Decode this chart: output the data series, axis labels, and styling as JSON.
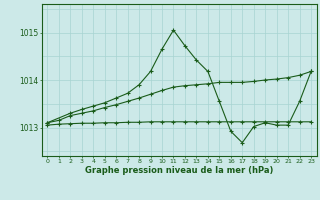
{
  "xlabel": "Graphe pression niveau de la mer (hPa)",
  "bg_color": "#cce9e8",
  "line_color": "#1a5c1a",
  "grid_color": "#a8d4d2",
  "x_ticks": [
    0,
    1,
    2,
    3,
    4,
    5,
    6,
    7,
    8,
    9,
    10,
    11,
    12,
    13,
    14,
    15,
    16,
    17,
    18,
    19,
    20,
    21,
    22,
    23
  ],
  "ylim": [
    1012.4,
    1015.6
  ],
  "yticks": [
    1013,
    1014
  ],
  "ytick_top": 1015,
  "series1_flat": {
    "x": [
      0,
      1,
      2,
      3,
      4,
      5,
      6,
      7,
      8,
      9,
      10,
      11,
      12,
      13,
      14,
      15,
      16,
      17,
      18,
      19,
      20,
      21,
      22,
      23
    ],
    "y": [
      1013.05,
      1013.07,
      1013.08,
      1013.09,
      1013.09,
      1013.1,
      1013.1,
      1013.11,
      1013.11,
      1013.12,
      1013.12,
      1013.12,
      1013.12,
      1013.12,
      1013.12,
      1013.12,
      1013.12,
      1013.12,
      1013.12,
      1013.12,
      1013.12,
      1013.12,
      1013.12,
      1013.12
    ]
  },
  "series2_rising": {
    "x": [
      0,
      1,
      2,
      3,
      4,
      5,
      6,
      7,
      8,
      9,
      10,
      11,
      12,
      13,
      14,
      15,
      16,
      17,
      18,
      19,
      20,
      21,
      22,
      23
    ],
    "y": [
      1013.1,
      1013.15,
      1013.25,
      1013.3,
      1013.35,
      1013.42,
      1013.48,
      1013.55,
      1013.62,
      1013.7,
      1013.78,
      1013.85,
      1013.88,
      1013.9,
      1013.92,
      1013.95,
      1013.95,
      1013.95,
      1013.97,
      1014.0,
      1014.02,
      1014.05,
      1014.1,
      1014.18
    ]
  },
  "series3_wavy": {
    "x": [
      0,
      2,
      3,
      4,
      5,
      6,
      7,
      8,
      9,
      10,
      11,
      12,
      13,
      14,
      15,
      16,
      17,
      18,
      19,
      20,
      21,
      22,
      23
    ],
    "y": [
      1013.1,
      1013.3,
      1013.38,
      1013.45,
      1013.52,
      1013.62,
      1013.72,
      1013.9,
      1014.18,
      1014.65,
      1015.05,
      1014.72,
      1014.42,
      1014.18,
      1013.55,
      1012.92,
      1012.68,
      1013.02,
      1013.1,
      1013.05,
      1013.05,
      1013.55,
      1014.18
    ]
  }
}
